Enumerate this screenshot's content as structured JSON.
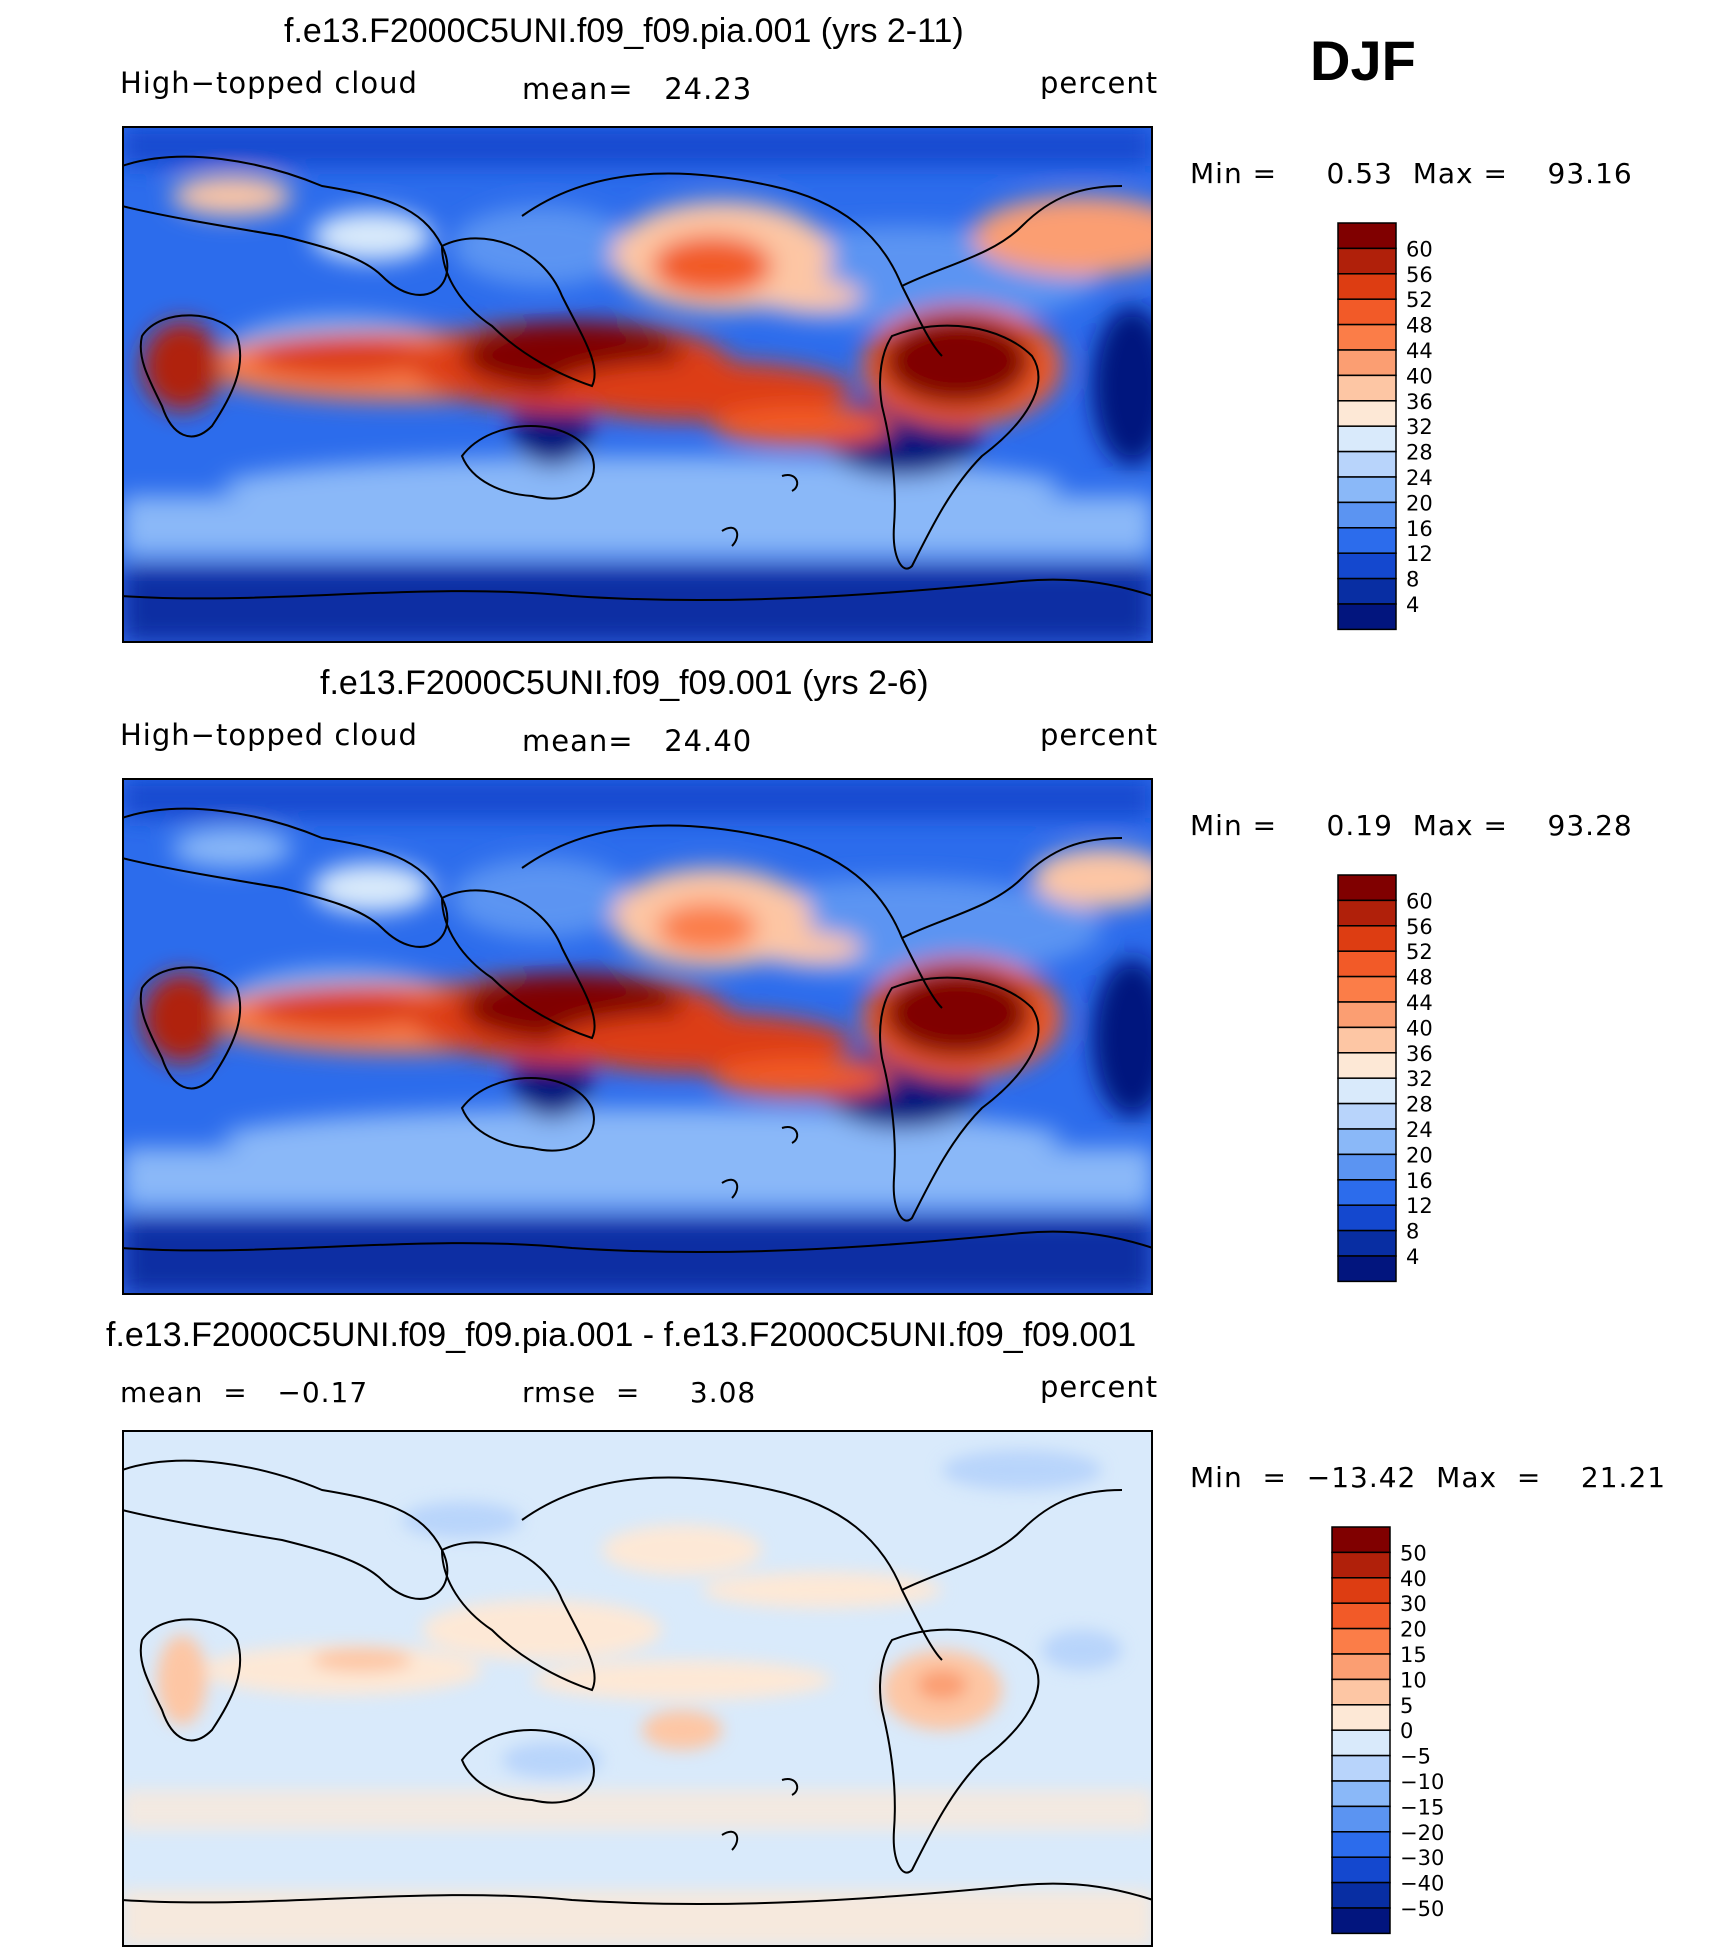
{
  "season": "DJF",
  "chart_data": [
    {
      "type": "heatmap",
      "title": "f.e13.F2000C5UNI.f09_f09.pia.001 (yrs 2-11)",
      "left_label": "High−topped cloud",
      "center_label": "mean=   24.23",
      "right_label": "percent",
      "mean": 24.23,
      "min_max_label": "Min =     0.53  Max =    93.16",
      "min": 0.53,
      "max": 93.16,
      "colorbar_levels": [
        "60",
        "56",
        "52",
        "48",
        "44",
        "40",
        "36",
        "32",
        "28",
        "24",
        "20",
        "16",
        "12",
        "8",
        "4"
      ],
      "colorbar_colors": [
        "#800000",
        "#b0200a",
        "#dd3d12",
        "#f25a28",
        "#fb7d48",
        "#fb9e72",
        "#fdc6a4",
        "#fde8d6",
        "#d9eafb",
        "#b8d4fb",
        "#8ab8f8",
        "#5b94f2",
        "#2c6cec",
        "#1448cf",
        "#082ea3",
        "#02157e"
      ]
    },
    {
      "type": "heatmap",
      "title": "f.e13.F2000C5UNI.f09_f09.001 (yrs 2-6)",
      "left_label": "High−topped cloud",
      "center_label": "mean=   24.40",
      "right_label": "percent",
      "mean": 24.4,
      "min_max_label": "Min =     0.19  Max =    93.28",
      "min": 0.19,
      "max": 93.28,
      "colorbar_levels": [
        "60",
        "56",
        "52",
        "48",
        "44",
        "40",
        "36",
        "32",
        "28",
        "24",
        "20",
        "16",
        "12",
        "8",
        "4"
      ],
      "colorbar_colors": [
        "#800000",
        "#b0200a",
        "#dd3d12",
        "#f25a28",
        "#fb7d48",
        "#fb9e72",
        "#fdc6a4",
        "#fde8d6",
        "#d9eafb",
        "#b8d4fb",
        "#8ab8f8",
        "#5b94f2",
        "#2c6cec",
        "#1448cf",
        "#082ea3",
        "#02157e"
      ]
    },
    {
      "type": "heatmap",
      "title": "f.e13.F2000C5UNI.f09_f09.pia.001 - f.e13.F2000C5UNI.f09_f09.001",
      "left_label": "mean  =   −0.17",
      "center_label": "rmse  =     3.08",
      "right_label": "percent",
      "mean": -0.17,
      "rmse": 3.08,
      "min_max_label": "Min  =  −13.42  Max  =    21.21",
      "min": -13.42,
      "max": 21.21,
      "colorbar_levels": [
        "50",
        "40",
        "30",
        "20",
        "15",
        "10",
        "5",
        "0",
        "−5",
        "−10",
        "−15",
        "−20",
        "−30",
        "−40",
        "−50"
      ],
      "colorbar_colors": [
        "#800000",
        "#b0200a",
        "#dd3d12",
        "#f25a28",
        "#fb7d48",
        "#fb9e72",
        "#fdc6a4",
        "#fde8d6",
        "#d9eafb",
        "#b8d4fb",
        "#8ab8f8",
        "#5b94f2",
        "#2c6cec",
        "#1448cf",
        "#082ea3",
        "#02157e"
      ]
    }
  ]
}
